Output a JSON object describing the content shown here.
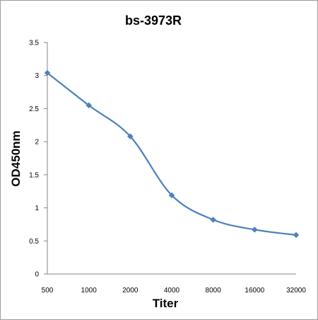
{
  "chart_data": {
    "type": "line",
    "title": "bs-3973R",
    "xlabel": "Titer",
    "ylabel": "OD450nm",
    "categories": [
      "500",
      "1000",
      "2000",
      "4000",
      "8000",
      "16000",
      "32000"
    ],
    "series": [
      {
        "values": [
          3.04,
          2.55,
          2.08,
          1.19,
          0.82,
          0.67,
          0.59
        ],
        "color": "#4f81bd",
        "marker": "diamond",
        "smooth": true
      }
    ],
    "ylim": [
      0,
      3.5
    ],
    "yticks": [
      "0",
      "0.5",
      "1",
      "1.5",
      "2",
      "2.5",
      "3",
      "3.5"
    ],
    "grid": false,
    "legend": "none"
  }
}
